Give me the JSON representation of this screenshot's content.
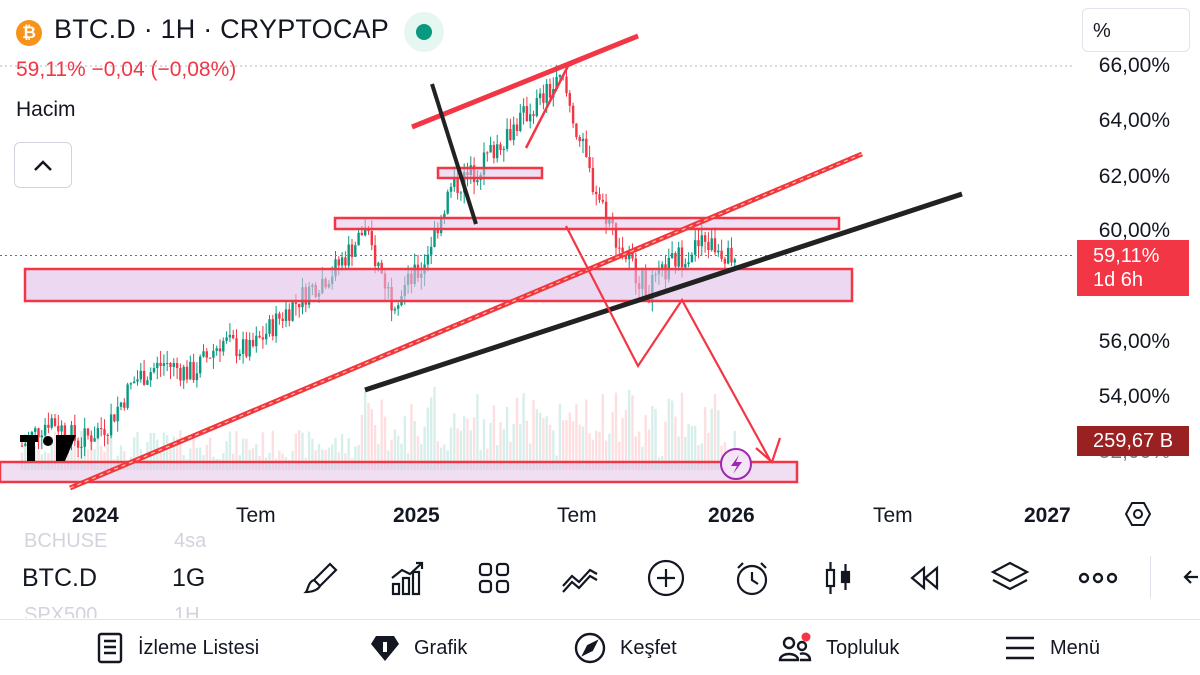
{
  "header": {
    "coin_glyph": "₿",
    "title": "BTC.D · 1H · CRYPTOCAP",
    "quote": "59,11%  −0,04 (−0,08%)",
    "volume_label": "Hacim",
    "collapse_glyph": "⌃",
    "tv_logo": "17"
  },
  "price_axis": {
    "mode_label": "%",
    "labels": [
      "66,00%",
      "64,00%",
      "62,00%",
      "60,00%",
      "56,00%",
      "54,00%",
      "52,00%"
    ],
    "current_price": "59,11%",
    "countdown": "1d 6h",
    "volume_value": "259,67 B"
  },
  "time_axis": {
    "labels": [
      "2024",
      "Tem",
      "2025",
      "Tem",
      "2026",
      "Tem",
      "2027"
    ]
  },
  "toolbar": {
    "symbol": "BTC.D",
    "interval": "1G",
    "ghost_prev_symbol": "BCHUSE",
    "ghost_prev_interval": "4sa",
    "ghost_next_symbol": "SPX500",
    "ghost_next_interval": "1H",
    "tools": [
      "brush-icon",
      "indicators-icon",
      "templates-icon",
      "trend-icon",
      "add-icon",
      "alert-icon",
      "candles-icon",
      "replay-icon",
      "layers-icon",
      "more-icon"
    ]
  },
  "bottom_nav": {
    "items": [
      {
        "label": "İzleme Listesi",
        "icon": "watchlist-icon"
      },
      {
        "label": "Grafik",
        "icon": "chart-icon"
      },
      {
        "label": "Keşfet",
        "icon": "compass-icon"
      },
      {
        "label": "Topluluk",
        "icon": "community-icon"
      },
      {
        "label": "Menü",
        "icon": "menu-icon"
      }
    ]
  },
  "colors": {
    "up": "#089981",
    "down": "#f23645",
    "drawing_red": "#f23645",
    "zone_fill": "#e1bee7",
    "trendline_black": "#222222"
  },
  "chart_data": {
    "type": "candlestick",
    "symbol": "BTC.D",
    "unit": "%",
    "ylim": [
      51.5,
      66.5
    ],
    "current": 59.11,
    "series": [
      {
        "date": "2023-11",
        "close": 52.2
      },
      {
        "date": "2023-12",
        "close": 53.2
      },
      {
        "date": "2024-01",
        "close": 52.3
      },
      {
        "date": "2024-02",
        "close": 53.0
      },
      {
        "date": "2024-03",
        "close": 54.6
      },
      {
        "date": "2024-04",
        "close": 55.2
      },
      {
        "date": "2024-05",
        "close": 54.8
      },
      {
        "date": "2024-06",
        "close": 56.0
      },
      {
        "date": "2024-07",
        "close": 55.6
      },
      {
        "date": "2024-08",
        "close": 56.8
      },
      {
        "date": "2024-09",
        "close": 57.8
      },
      {
        "date": "2024-10",
        "close": 58.6
      },
      {
        "date": "2024-11",
        "close": 60.0
      },
      {
        "date": "2024-12",
        "close": 57.5
      },
      {
        "date": "2025-01",
        "close": 58.6
      },
      {
        "date": "2025-02",
        "close": 61.5
      },
      {
        "date": "2025-03",
        "close": 62.2
      },
      {
        "date": "2025-04",
        "close": 63.5
      },
      {
        "date": "2025-05",
        "close": 64.5
      },
      {
        "date": "2025-06",
        "close": 65.5
      },
      {
        "date": "2025-07",
        "close": 62.0
      },
      {
        "date": "2025-08",
        "close": 59.5
      },
      {
        "date": "2025-09",
        "close": 57.8
      },
      {
        "date": "2025-10",
        "close": 59.0
      },
      {
        "date": "2025-11",
        "close": 59.6
      },
      {
        "date": "2025-12",
        "close": 59.11
      }
    ]
  }
}
